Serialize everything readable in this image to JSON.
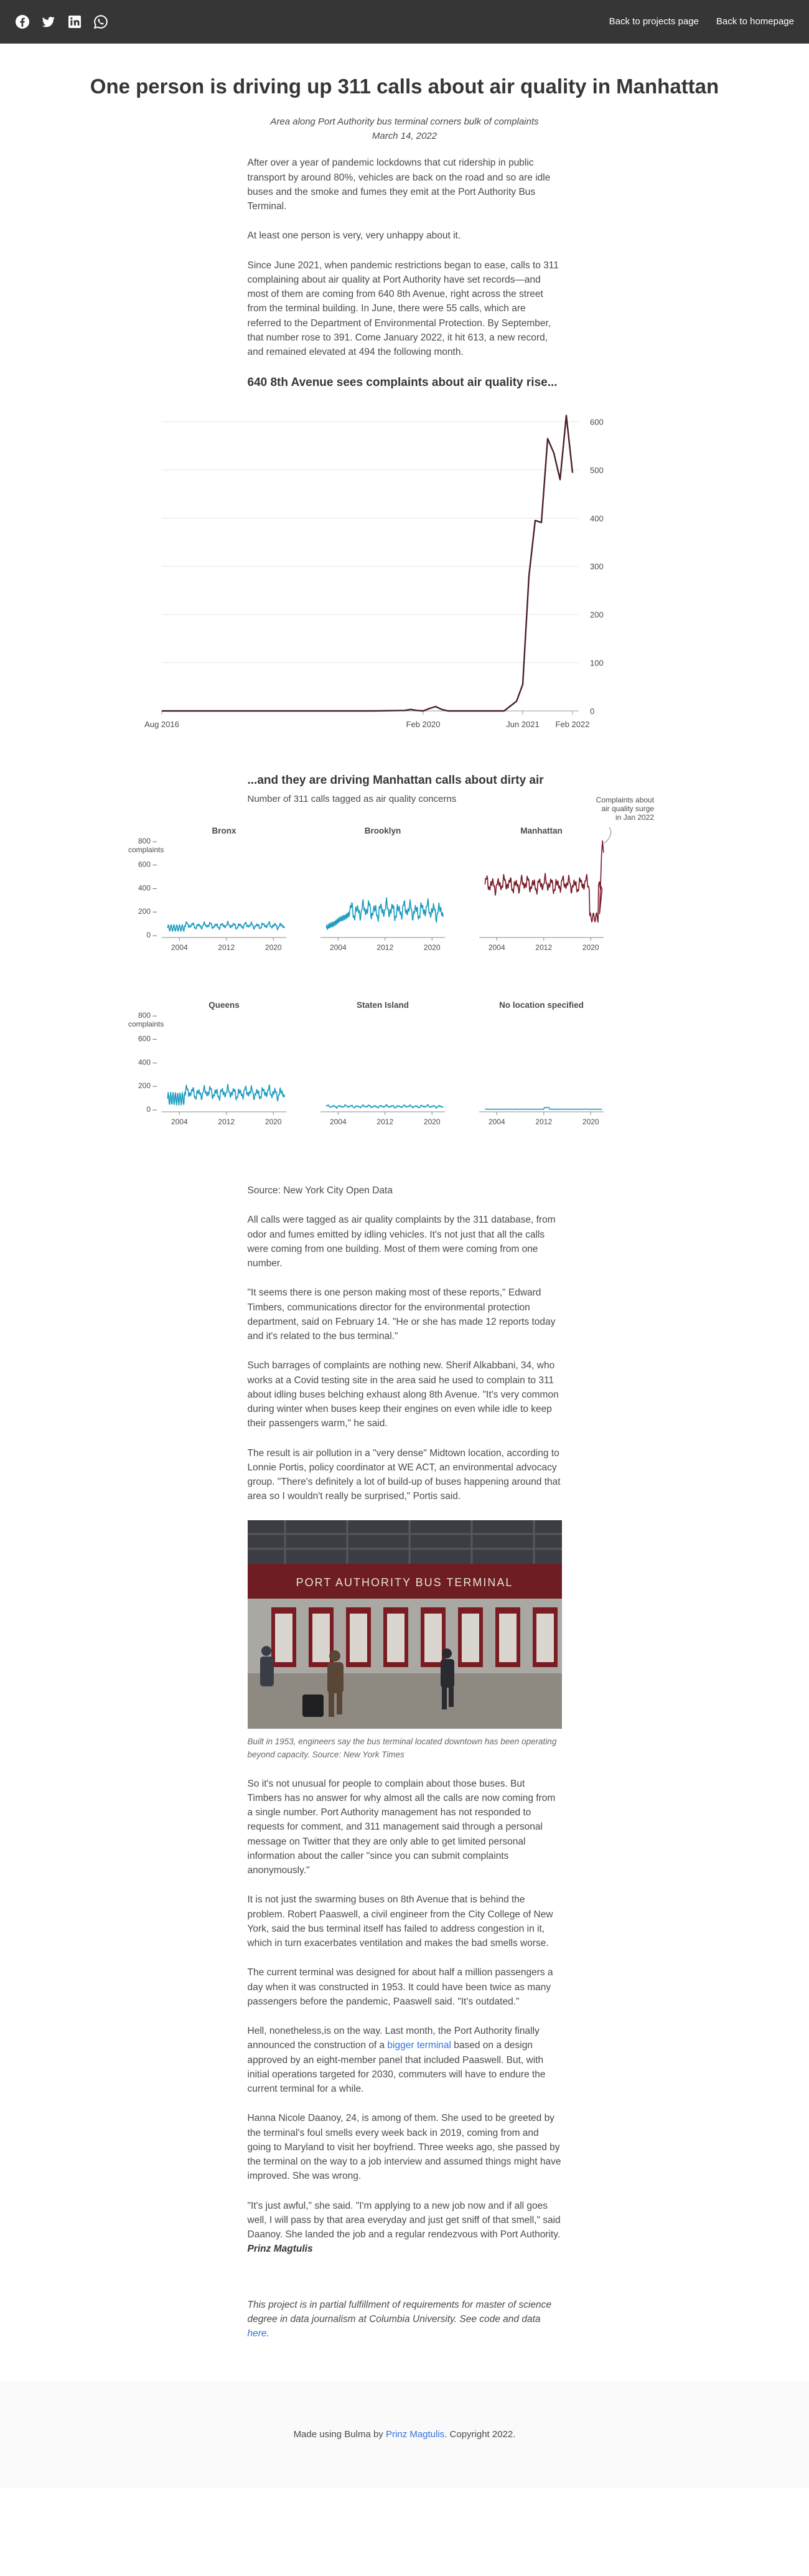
{
  "nav": {
    "icons": [
      "facebook-icon",
      "twitter-icon",
      "linkedin-icon",
      "whatsapp-icon"
    ],
    "back_projects": "Back to projects page",
    "back_home": "Back to homepage"
  },
  "article": {
    "title": "One person is driving up 311 calls about air quality in Manhattan",
    "subtitle": "Area along Port Authority bus terminal corners bulk of complaints",
    "date": "March 14, 2022",
    "p1": "After over a year of pandemic lockdowns that cut ridership in public transport by around 80%, vehicles are back on the road and so are idle buses and the smoke and fumes they emit at the Port Authority Bus Terminal.",
    "p2": "At least one person is very, very unhappy about it.",
    "p3": "Since June 2021, when pandemic restrictions began to ease, calls to 311 complaining about air quality at Port Authority have set records—and most of them are coming from 640 8th Avenue, right across the street from the terminal building. In June, there were 55 calls, which are referred to the Department of Environmental Protection. By September, that number rose to 391. Come January 2022, it hit 613, a new record, and remained elevated at 494 the following month.",
    "chart1_heading": "640 8th Avenue sees complaints about air quality rise...",
    "chart2_heading": "...and they are driving Manhattan calls about dirty air",
    "chart2_sub": "Number of 311 calls tagged as air quality concerns",
    "source": "Source: New York City Open Data",
    "p4": "All calls were tagged as air quality complaints by the 311 database, from odor and fumes emitted by idling vehicles. It's not just that all the calls were coming from one building. Most of them were coming from one number.",
    "p5": "\"It seems there is one person making most of these reports,\" Edward Timbers, communications director for the environmental protection department, said on February 14. \"He or she has made 12 reports today and it's related to the bus terminal.\"",
    "p6": "Such barrages of complaints are nothing new. Sherif Alkabbani, 34, who works at a Covid testing site in the area said he used to complain to 311 about idling buses belching exhaust along 8th Avenue. \"It's very common during winter when buses keep their engines on even while idle to keep their passengers warm,\" he said.",
    "p7": "The result is air pollution in a \"very dense\" Midtown location, according to Lonnie Portis, policy coordinator at WE ACT, an environmental advocacy group. \"There's definitely a lot of build-up of buses happening around that area so I wouldn't really be surprised,\" Portis said.",
    "photo_sign": "PORT   AUTHORITY   BUS   TERMINAL",
    "caption": "Built in 1953, engineers say the bus terminal located downtown has been operating beyond capacity. Source: New York Times",
    "p8": "So it's not unusual for people to complain about those buses. But Timbers has no answer for why almost all the calls are now coming from a single number. Port Authority management has not responded to requests for comment, and 311 management said through a personal message on Twitter that they are only able to get limited personal information about the caller \"since you can submit complaints anonymously.\"",
    "p9": "It is not just the swarming buses on 8th Avenue that is behind the problem. Robert Paaswell, a civil engineer from the City College of New York, said the bus terminal itself has failed to address congestion in it, which in turn exacerbates ventilation and makes the bad smells worse.",
    "p10": "The current terminal was designed for about half a million passengers a day when it was constructed in 1953. It could have been twice as many passengers before the pandemic, Paaswell said. \"It's outdated.\"",
    "p11_a": "Hell, nonetheless,is on the way. Last month, the Port Authority finally announced the construction of a ",
    "p11_link": "bigger terminal",
    "p11_b": " based on a design approved by an eight-member panel that included Paaswell. But, with initial operations targeted for 2030, commuters will have to endure the current terminal for a while.",
    "p12": "Hanna Nicole Daanoy, 24, is among of them. She used to be greeted by the terminal's foul smells every week back in 2019, coming from and going to Maryland to visit her boyfriend. Three weeks ago, she passed by the terminal on the way to a job interview and assumed things might have improved. She was wrong.",
    "p13": "\"It's just awful,\" she said. \"I'm applying to a new job now and if all goes well, I will pass by that area everyday and just get sniff of that smell,\" said Daanoy. She landed the job and a regular rendezvous with Port Authority. ",
    "signature": "Prinz Magtulis",
    "footnote_a": "This project is in partial fulfillment of requirements for master of science degree in data journalism at Columbia University. See code and data ",
    "footnote_link": "here",
    "footnote_b": "."
  },
  "footer": {
    "text_a": "Made using Bulma by ",
    "author": "Prinz Magtulis",
    "text_b": ". Copyright 2022."
  },
  "chart_data": [
    {
      "type": "line",
      "title": "640 8th Avenue sees complaints about air quality rise...",
      "x_tick_labels": [
        "Aug 2016",
        "Feb 2020",
        "Jun 2021",
        "Feb 2022"
      ],
      "y_ticks": [
        0,
        100,
        200,
        300,
        400,
        500,
        600
      ],
      "ylim": [
        0,
        620
      ],
      "grid": true,
      "color": "#4a1f24",
      "x_range": [
        "2016-08",
        "2022-03"
      ],
      "points": [
        [
          "2016-08",
          0
        ],
        [
          "2017-06",
          0
        ],
        [
          "2018-06",
          0
        ],
        [
          "2019-06",
          0
        ],
        [
          "2019-11",
          1
        ],
        [
          "2019-12",
          3
        ],
        [
          "2020-01",
          1
        ],
        [
          "2020-02",
          0
        ],
        [
          "2020-03",
          5
        ],
        [
          "2020-04",
          9
        ],
        [
          "2020-05",
          3
        ],
        [
          "2020-06",
          0
        ],
        [
          "2020-12",
          0
        ],
        [
          "2021-03",
          0
        ],
        [
          "2021-05",
          20
        ],
        [
          "2021-06",
          55
        ],
        [
          "2021-07",
          280
        ],
        [
          "2021-08",
          395
        ],
        [
          "2021-09",
          391
        ],
        [
          "2021-10",
          565
        ],
        [
          "2021-11",
          535
        ],
        [
          "2021-12",
          480
        ],
        [
          "2022-01",
          613
        ],
        [
          "2022-02",
          494
        ]
      ]
    },
    {
      "type": "line",
      "title": "...and they are driving Manhattan calls about dirty air",
      "subtitle": "Number of 311 calls tagged as air quality concerns",
      "y_ticks": [
        0,
        200,
        400,
        600,
        800
      ],
      "y_unit_label": "complaints",
      "x_ticks": [
        2004,
        2012,
        2020
      ],
      "annotation": "Complaints about air quality surge in Jan 2022",
      "colors": {
        "default": "#1a9bbf",
        "highlight": "#7a1824"
      },
      "series": [
        {
          "name": "Bronx",
          "baseline": 80,
          "amplitude": 28
        },
        {
          "name": "Brooklyn",
          "baseline": 210,
          "amplitude": 80
        },
        {
          "name": "Manhattan",
          "baseline": 430,
          "amplitude": 70,
          "last_values": [
            180,
            420,
            680,
            800,
            700
          ]
        },
        {
          "name": "Queens",
          "baseline": 140,
          "amplitude": 55
        },
        {
          "name": "Staten Island",
          "baseline": 25,
          "amplitude": 12
        },
        {
          "name": "No location specified",
          "baseline": 1,
          "amplitude": 1
        }
      ]
    }
  ]
}
